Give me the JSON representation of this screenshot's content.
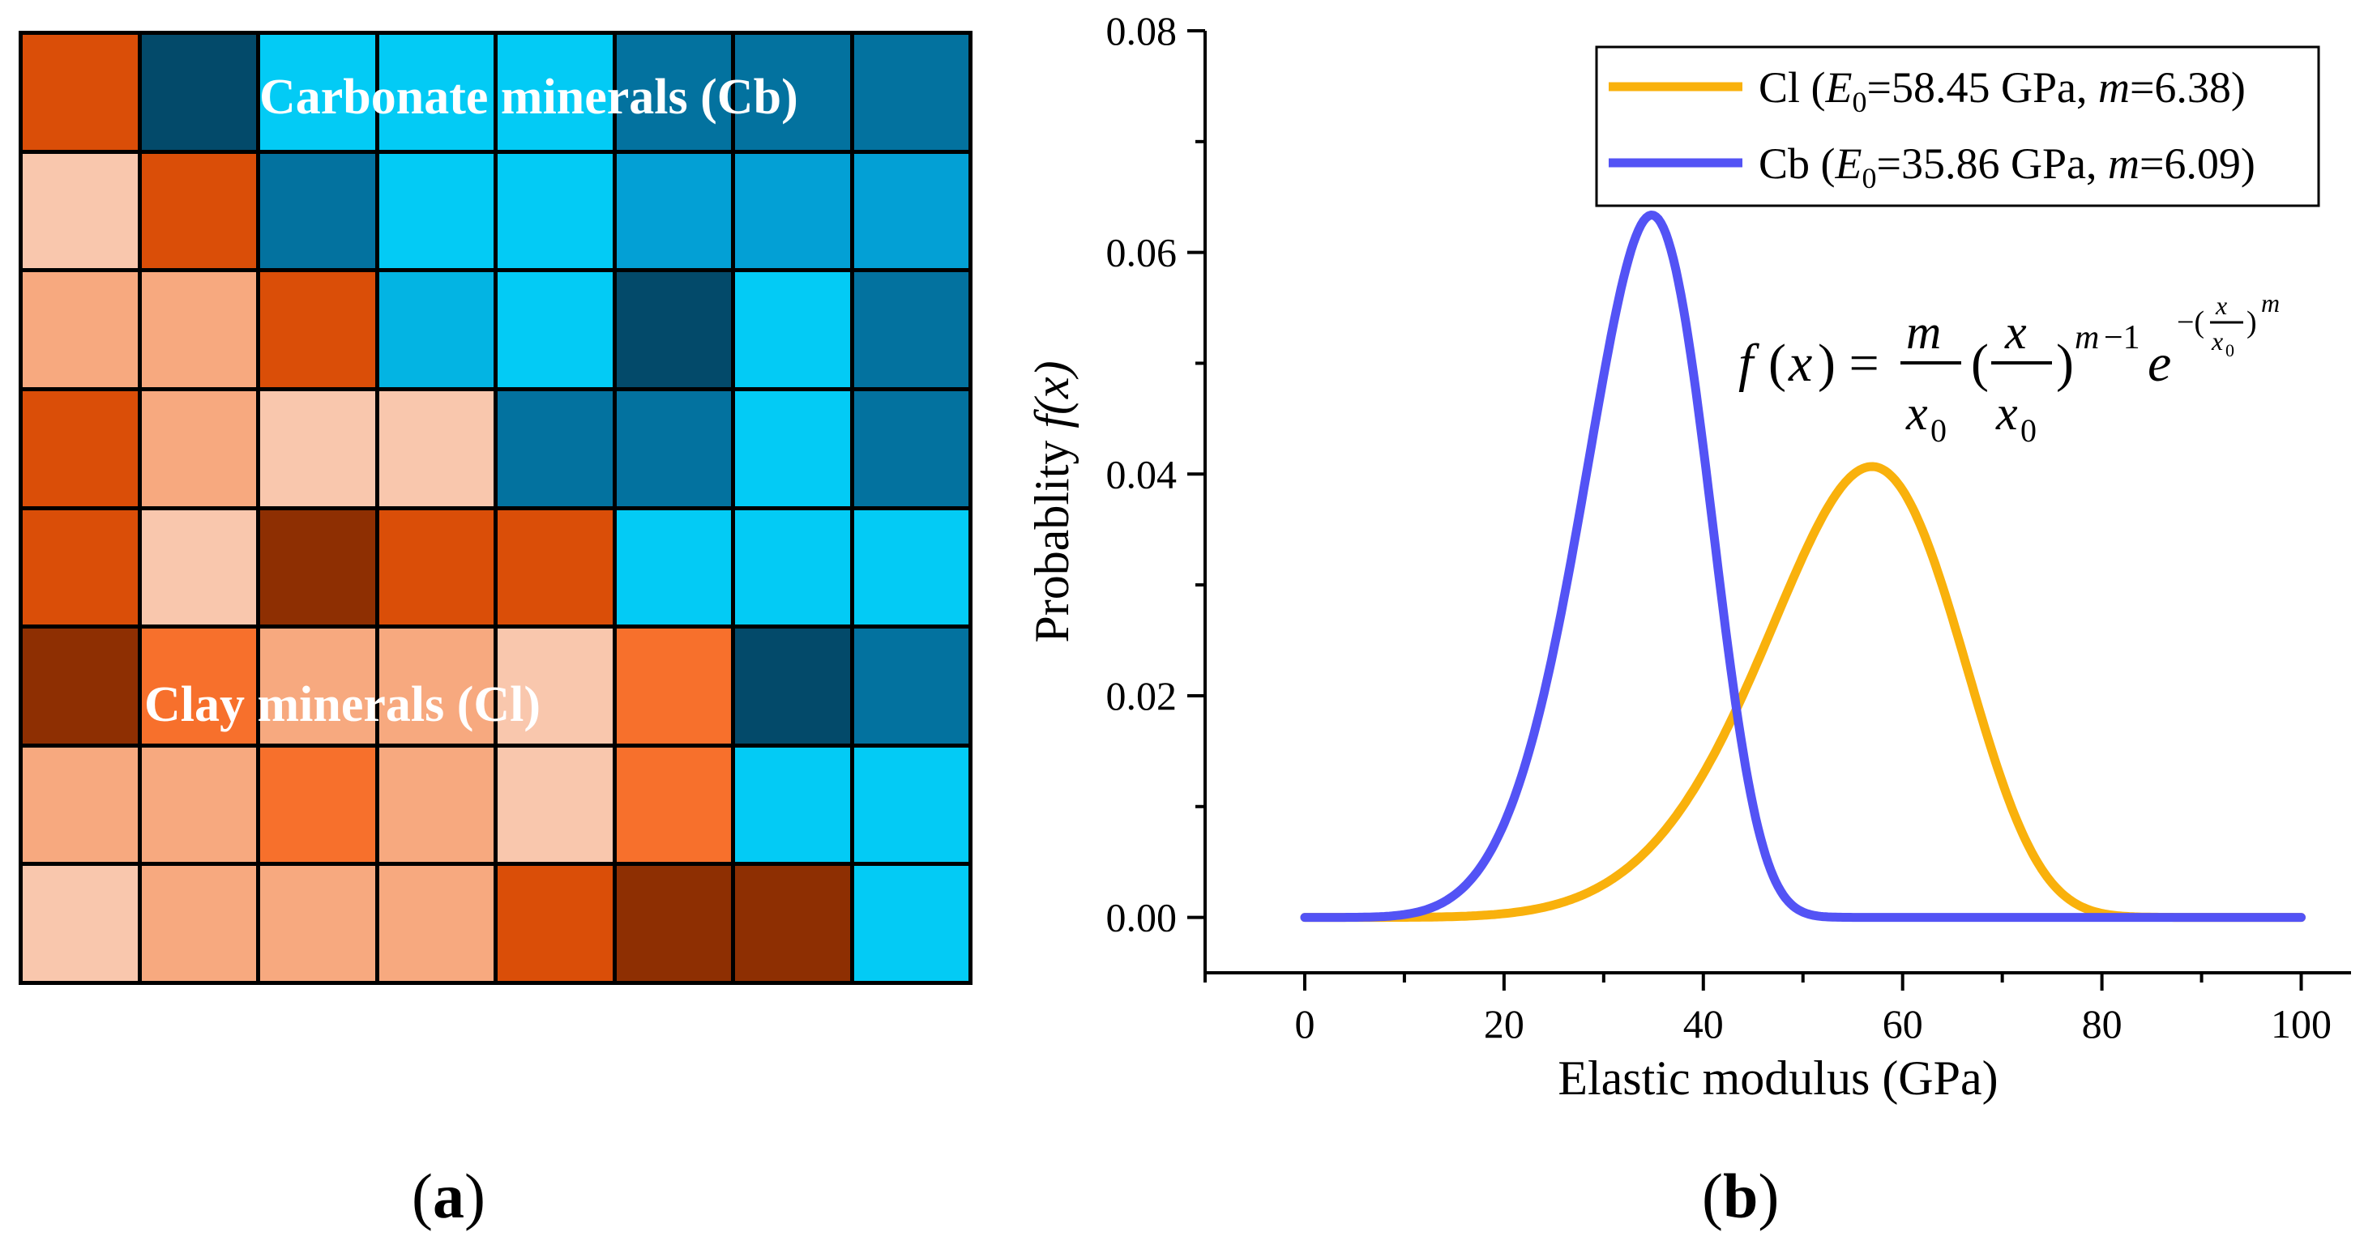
{
  "panel_a": {
    "caption_open": "(",
    "caption_letter": "a",
    "caption_close": ")",
    "label_cb": "Carbonate minerals (Cb)",
    "label_cl": "Clay minerals (Cl)",
    "colors": {
      "D": "#da4e08",
      "L": "#f9c7ad",
      "M": "#f7a97f",
      "B": "#8e2f02",
      "O": "#f7702c",
      "N": "#034a6a",
      "T": "#03729f",
      "C": "#03cbf5",
      "S": "#03a0d5",
      "K": "#03b4e3"
    },
    "grid": [
      [
        "D",
        "N",
        "C",
        "C",
        "C",
        "T",
        "T",
        "T"
      ],
      [
        "L",
        "D",
        "T",
        "C",
        "C",
        "S",
        "S",
        "S"
      ],
      [
        "M",
        "M",
        "D",
        "K",
        "C",
        "N",
        "C",
        "T"
      ],
      [
        "D",
        "M",
        "L",
        "L",
        "T",
        "T",
        "C",
        "T"
      ],
      [
        "D",
        "L",
        "B",
        "D",
        "D",
        "C",
        "C",
        "C"
      ],
      [
        "B",
        "O",
        "M",
        "M",
        "L",
        "O",
        "N",
        "T"
      ],
      [
        "M",
        "M",
        "O",
        "M",
        "L",
        "O",
        "C",
        "C"
      ],
      [
        "L",
        "M",
        "M",
        "M",
        "D",
        "B",
        "B",
        "C"
      ]
    ]
  },
  "panel_b": {
    "caption_open": "(",
    "caption_letter": "b",
    "caption_close": ")"
  },
  "chart_data": {
    "type": "line",
    "xlabel": "Elastic modulus (GPa)",
    "ylabel_text": "Probablity",
    "ylabel_func": "f(x)",
    "xlim": [
      -10,
      105
    ],
    "ylim": [
      -0.005,
      0.08
    ],
    "xticks": [
      0,
      20,
      40,
      60,
      80,
      100
    ],
    "xtick_labels": [
      "0",
      "20",
      "40",
      "60",
      "80",
      "100"
    ],
    "yticks": [
      0.0,
      0.02,
      0.04,
      0.06,
      0.08
    ],
    "ytick_labels": [
      "0.00",
      "0.02",
      "0.04",
      "0.06",
      "0.08"
    ],
    "formula": "f(x) = (m/x0)(x/x0)^(m−1) e^(−(x/x0)^m)",
    "series": [
      {
        "name": "Cl",
        "legend_prefix": "Cl (",
        "legend_e": "E",
        "legend_sub": "0",
        "legend_e0": "=58.45 GPa, ",
        "legend_m": "m",
        "legend_mval": "=6.38)",
        "E0": 58.45,
        "m": 6.38,
        "color": "#f9b10c",
        "x_range": [
          0,
          100
        ]
      },
      {
        "name": "Cb",
        "legend_prefix": "Cb (",
        "legend_e": "E",
        "legend_sub": "0",
        "legend_e0": "=35.86 GPa, ",
        "legend_m": "m",
        "legend_mval": "=6.09)",
        "E0": 35.86,
        "m": 6.09,
        "color": "#5353f5",
        "x_range": [
          0,
          100
        ]
      }
    ]
  }
}
